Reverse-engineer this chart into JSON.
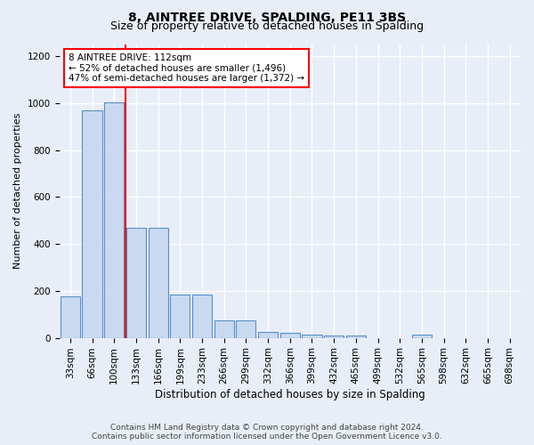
{
  "title": "8, AINTREE DRIVE, SPALDING, PE11 3BS",
  "subtitle": "Size of property relative to detached houses in Spalding",
  "xlabel": "Distribution of detached houses by size in Spalding",
  "ylabel": "Number of detached properties",
  "annotation_line1": "8 AINTREE DRIVE: 112sqm",
  "annotation_line2": "← 52% of detached houses are smaller (1,496)",
  "annotation_line3": "47% of semi-detached houses are larger (1,372) →",
  "footer1": "Contains HM Land Registry data © Crown copyright and database right 2024.",
  "footer2": "Contains public sector information licensed under the Open Government Licence v3.0.",
  "bin_labels": [
    "33sqm",
    "66sqm",
    "100sqm",
    "133sqm",
    "166sqm",
    "199sqm",
    "233sqm",
    "266sqm",
    "299sqm",
    "332sqm",
    "366sqm",
    "399sqm",
    "432sqm",
    "465sqm",
    "499sqm",
    "532sqm",
    "565sqm",
    "598sqm",
    "632sqm",
    "665sqm",
    "698sqm"
  ],
  "bar_values": [
    175,
    970,
    1005,
    470,
    470,
    185,
    185,
    75,
    75,
    25,
    22,
    15,
    10,
    10,
    0,
    0,
    12,
    0,
    0,
    0,
    0
  ],
  "bar_color": "#c9d9f0",
  "bar_edge_color": "#5b8fc9",
  "red_line_bin_index": 2,
  "ylim": [
    0,
    1250
  ],
  "yticks": [
    0,
    200,
    400,
    600,
    800,
    1000,
    1200
  ],
  "bg_color": "#e8eef8",
  "grid_color": "#ffffff",
  "title_fontsize": 10,
  "subtitle_fontsize": 9,
  "axis_label_fontsize": 8,
  "tick_fontsize": 7.5,
  "annotation_fontsize": 7.5,
  "footer_fontsize": 6.5
}
